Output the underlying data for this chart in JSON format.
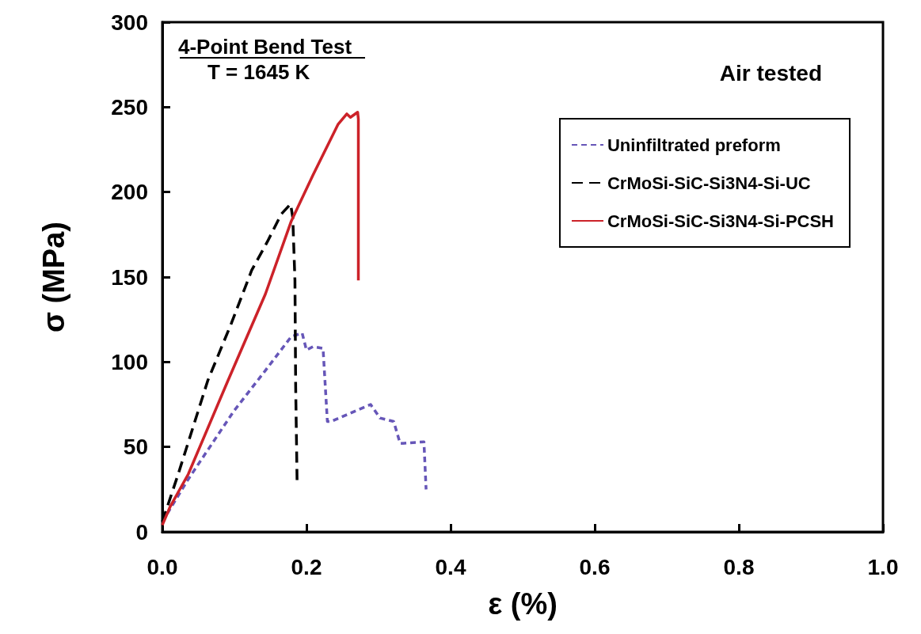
{
  "chart_data": {
    "type": "line",
    "xlabel": "ε (%)",
    "ylabel": "σ (MPa)",
    "xlim": [
      0,
      1
    ],
    "xticks": [
      {
        "value": 0,
        "label": "0.0"
      },
      0.2,
      0.4,
      0.6,
      0.8,
      {
        "value": 1,
        "label": "1.0"
      }
    ],
    "ylim": [
      0,
      300
    ],
    "yticks": [
      0,
      50,
      100,
      150,
      200,
      250,
      300
    ],
    "grid": false,
    "legend": "top right",
    "marker": "none",
    "annotations": [
      "4-Point Bend Test",
      "T = 1645 K",
      "Air tested"
    ],
    "series": [
      {
        "name": "Uninfiltrated preform",
        "color": "#6656b8",
        "line_style": "dotted",
        "x": [
          0,
          0.036,
          0.099,
          0.143,
          0.179,
          0.194,
          0.2,
          0.209,
          0.223,
          0.229,
          0.234,
          0.289,
          0.302,
          0.321,
          0.33,
          0.363,
          0.366
        ],
        "values": [
          6,
          31,
          71,
          95,
          115,
          117,
          107,
          109,
          108,
          65,
          65,
          75,
          67,
          65,
          52,
          53,
          25
        ]
      },
      {
        "name": "CrMoSi-SiC-Si3N4-Si-UC",
        "color": "#000000",
        "line_style": "dashed",
        "x": [
          0,
          0.022,
          0.063,
          0.096,
          0.124,
          0.146,
          0.165,
          0.178,
          0.181,
          0.184,
          0.185,
          0.187
        ],
        "values": [
          6,
          34,
          89,
          123,
          154,
          171,
          187,
          193,
          185,
          148,
          86,
          29
        ]
      },
      {
        "name": "CrMoSi-SiC-Si3N4-Si-PCSH",
        "color": "#cc2229",
        "line_style": "solid",
        "x": [
          0,
          0.011,
          0.036,
          0.091,
          0.143,
          0.179,
          0.209,
          0.244,
          0.256,
          0.261,
          0.271,
          0.272,
          0.272
        ],
        "values": [
          4,
          15,
          34,
          89,
          140,
          183,
          210,
          240,
          246,
          244,
          247,
          243,
          148
        ]
      }
    ]
  }
}
